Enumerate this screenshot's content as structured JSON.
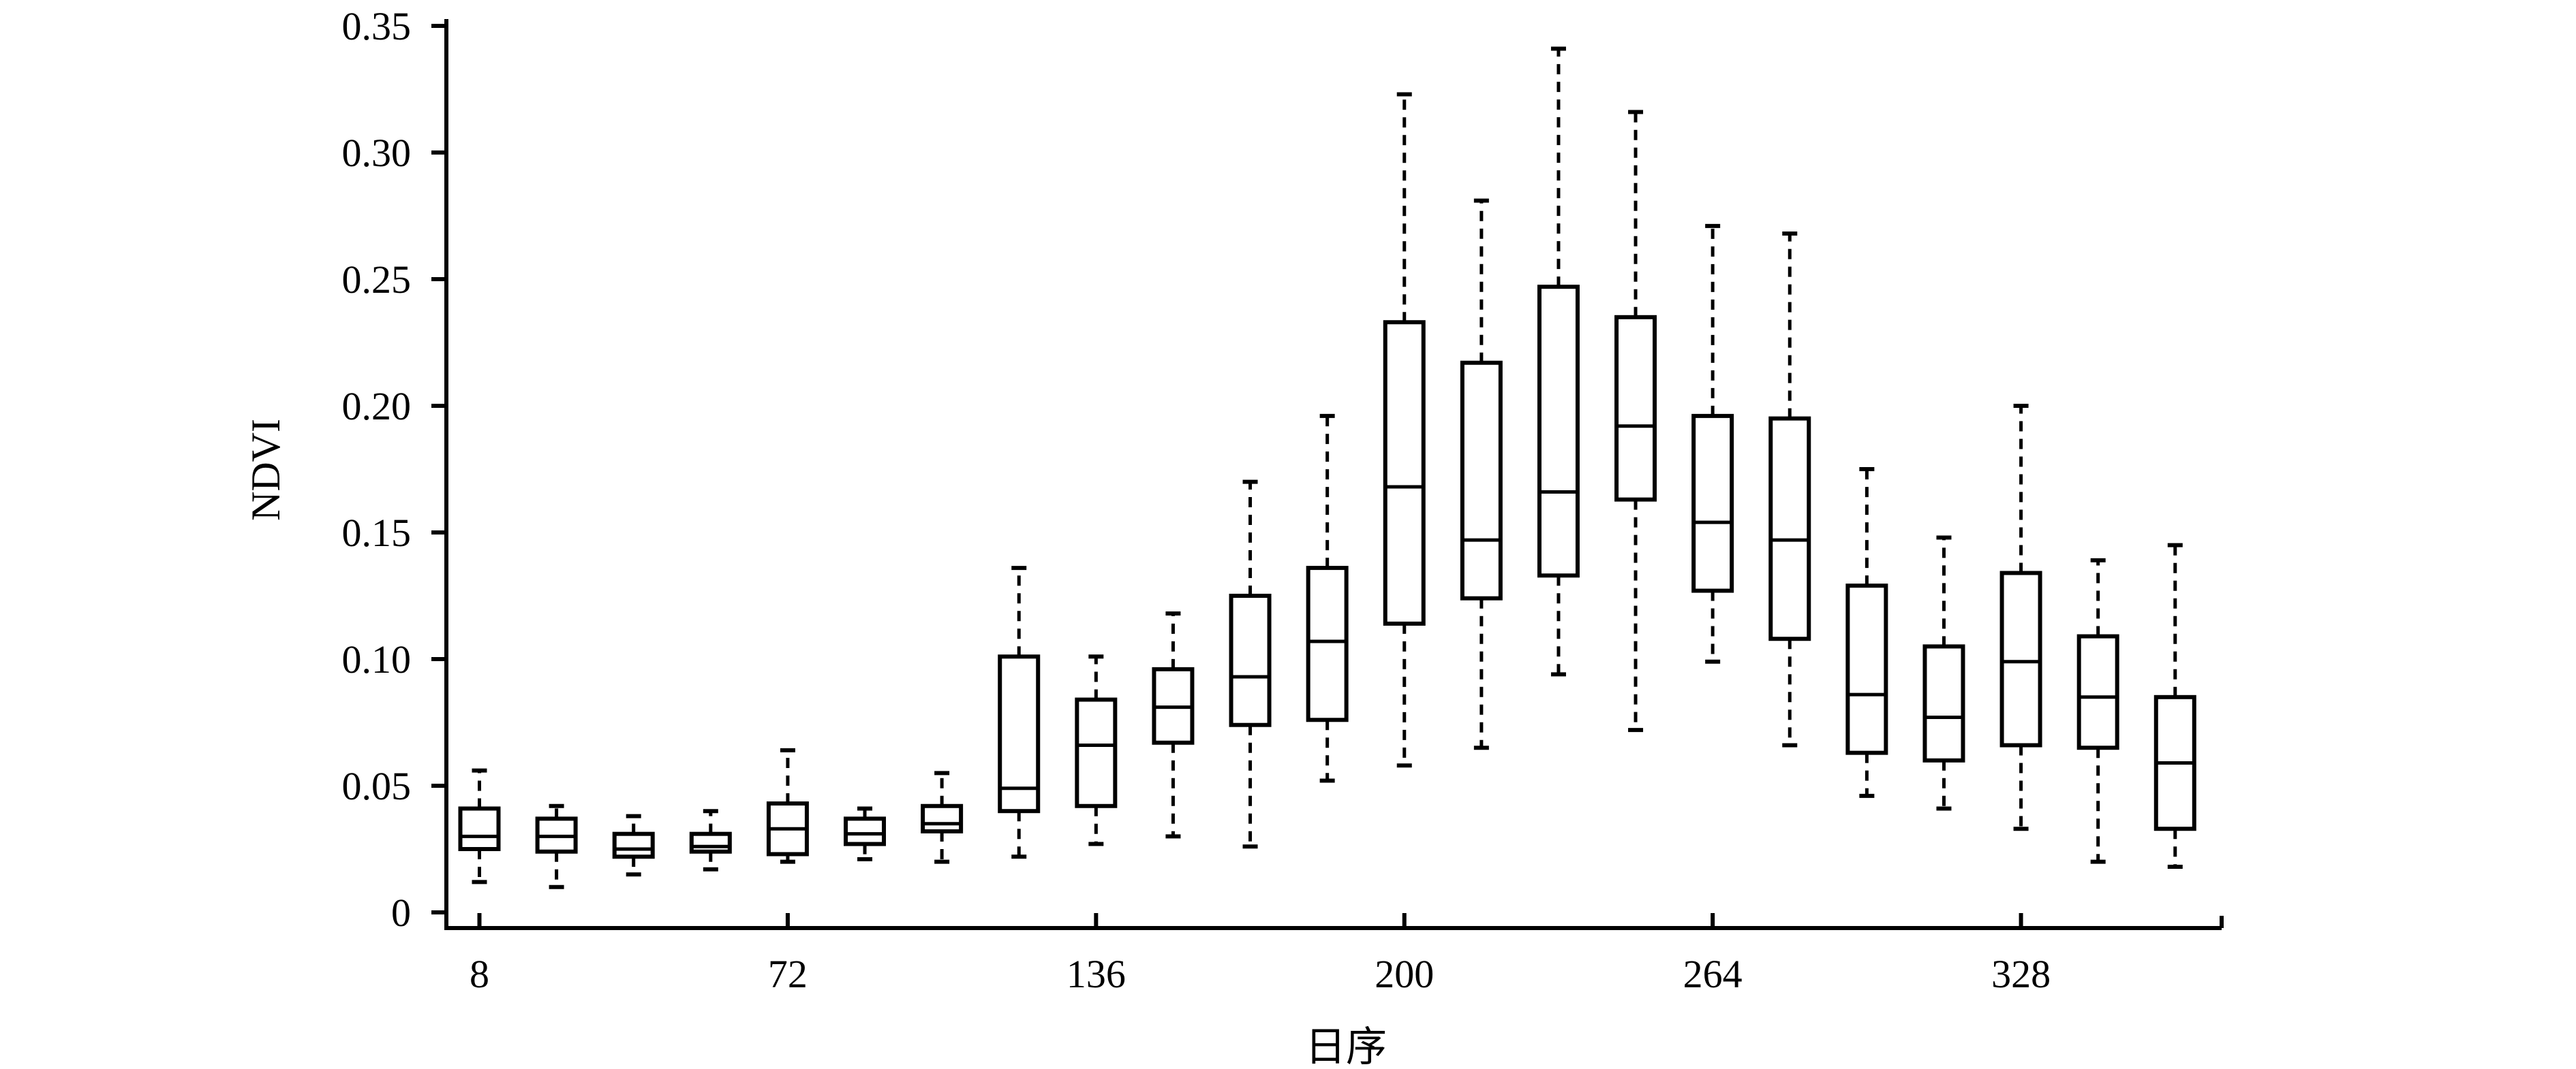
{
  "chart_data": {
    "type": "box",
    "xlabel": "日序",
    "ylabel": "NDVI",
    "ylim": [
      0,
      0.35
    ],
    "y_ticks": [
      "0",
      "0.05",
      "0.10",
      "0.15",
      "0.20",
      "0.25",
      "0.30",
      "0.35"
    ],
    "y_tick_values": [
      0,
      0.05,
      0.1,
      0.15,
      0.2,
      0.25,
      0.3,
      0.35
    ],
    "x_ticks": [
      "8",
      "72",
      "136",
      "200",
      "264",
      "328"
    ],
    "x_tick_values": [
      8,
      72,
      136,
      200,
      264,
      328
    ],
    "xlim": [
      0,
      360
    ],
    "grid": false,
    "legend": "none",
    "boxes": [
      {
        "x": 8,
        "min": 0.012,
        "q1": 0.025,
        "median": 0.03,
        "q3": 0.041,
        "max": 0.056
      },
      {
        "x": 24,
        "min": 0.01,
        "q1": 0.024,
        "median": 0.03,
        "q3": 0.037,
        "max": 0.042
      },
      {
        "x": 40,
        "min": 0.015,
        "q1": 0.022,
        "median": 0.025,
        "q3": 0.031,
        "max": 0.038
      },
      {
        "x": 56,
        "min": 0.017,
        "q1": 0.024,
        "median": 0.026,
        "q3": 0.031,
        "max": 0.04
      },
      {
        "x": 72,
        "min": 0.02,
        "q1": 0.023,
        "median": 0.033,
        "q3": 0.043,
        "max": 0.064
      },
      {
        "x": 88,
        "min": 0.021,
        "q1": 0.027,
        "median": 0.031,
        "q3": 0.037,
        "max": 0.041
      },
      {
        "x": 104,
        "min": 0.02,
        "q1": 0.032,
        "median": 0.035,
        "q3": 0.042,
        "max": 0.055
      },
      {
        "x": 120,
        "min": 0.022,
        "q1": 0.04,
        "median": 0.049,
        "q3": 0.101,
        "max": 0.136
      },
      {
        "x": 136,
        "min": 0.027,
        "q1": 0.042,
        "median": 0.066,
        "q3": 0.084,
        "max": 0.101
      },
      {
        "x": 152,
        "min": 0.03,
        "q1": 0.067,
        "median": 0.081,
        "q3": 0.096,
        "max": 0.118
      },
      {
        "x": 168,
        "min": 0.026,
        "q1": 0.074,
        "median": 0.093,
        "q3": 0.125,
        "max": 0.17
      },
      {
        "x": 184,
        "min": 0.052,
        "q1": 0.076,
        "median": 0.107,
        "q3": 0.136,
        "max": 0.196
      },
      {
        "x": 200,
        "min": 0.058,
        "q1": 0.114,
        "median": 0.168,
        "q3": 0.233,
        "max": 0.323
      },
      {
        "x": 216,
        "min": 0.065,
        "q1": 0.124,
        "median": 0.147,
        "q3": 0.217,
        "max": 0.281
      },
      {
        "x": 232,
        "min": 0.094,
        "q1": 0.133,
        "median": 0.166,
        "q3": 0.247,
        "max": 0.341
      },
      {
        "x": 248,
        "min": 0.072,
        "q1": 0.163,
        "median": 0.192,
        "q3": 0.235,
        "max": 0.316
      },
      {
        "x": 264,
        "min": 0.099,
        "q1": 0.127,
        "median": 0.154,
        "q3": 0.196,
        "max": 0.271
      },
      {
        "x": 280,
        "min": 0.066,
        "q1": 0.108,
        "median": 0.147,
        "q3": 0.195,
        "max": 0.268
      },
      {
        "x": 296,
        "min": 0.046,
        "q1": 0.063,
        "median": 0.086,
        "q3": 0.129,
        "max": 0.175
      },
      {
        "x": 312,
        "min": 0.041,
        "q1": 0.06,
        "median": 0.077,
        "q3": 0.105,
        "max": 0.148
      },
      {
        "x": 328,
        "min": 0.033,
        "q1": 0.066,
        "median": 0.099,
        "q3": 0.134,
        "max": 0.2
      },
      {
        "x": 344,
        "min": 0.02,
        "q1": 0.065,
        "median": 0.085,
        "q3": 0.109,
        "max": 0.139
      },
      {
        "x": 360,
        "min": 0.018,
        "q1": 0.033,
        "median": 0.059,
        "q3": 0.085,
        "max": 0.145
      }
    ]
  }
}
